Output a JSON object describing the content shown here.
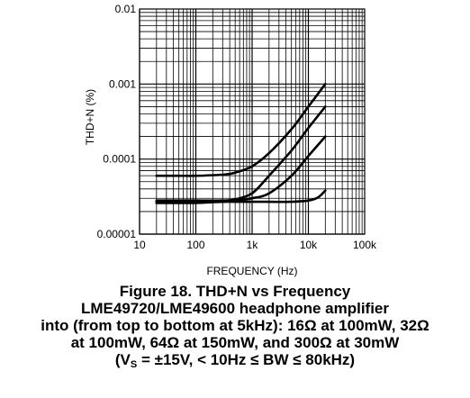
{
  "caption": {
    "line1": "Figure 18. THD+N vs Frequency",
    "line2": "LME49720/LME49600 headphone amplifier",
    "line3": "into (from top to bottom at 5kHz): 16Ω at 100mW, 32Ω",
    "line4": "at 100mW, 64Ω at 150mW, and 300Ω at 30mW",
    "line5_pre": "(V",
    "line5_sub": "S",
    "line5_post": " = ±15V, < 10Hz ≤ BW ≤ 80kHz)"
  },
  "chart_data": {
    "type": "line",
    "title": "",
    "xlabel": "FREQUENCY (Hz)",
    "ylabel": "THD+N (%)",
    "x_scale": "log",
    "y_scale": "log",
    "xlim": [
      10,
      100000
    ],
    "ylim": [
      1e-05,
      0.01
    ],
    "x_ticks": [
      10,
      100,
      1000,
      10000,
      100000
    ],
    "x_tick_labels": [
      "10",
      "100",
      "1k",
      "10k",
      "100k"
    ],
    "y_ticks": [
      1e-05,
      0.0001,
      0.001,
      0.01
    ],
    "y_tick_labels": [
      "0.00001",
      "0.0001",
      "0.001",
      "0.01"
    ],
    "grid": true,
    "series": [
      {
        "label": "16Ω at 100mW",
        "x": [
          20,
          50,
          100,
          300,
          500,
          1000,
          2000,
          5000,
          10000,
          20000
        ],
        "y": [
          6e-05,
          6e-05,
          6e-05,
          6.2e-05,
          6.6e-05,
          8e-05,
          0.00012,
          0.00025,
          0.0005,
          0.001
        ]
      },
      {
        "label": "32Ω at 100mW",
        "x": [
          20,
          50,
          100,
          300,
          500,
          1000,
          2000,
          5000,
          10000,
          20000
        ],
        "y": [
          2.8e-05,
          2.8e-05,
          2.8e-05,
          2.8e-05,
          2.9e-05,
          3.5e-05,
          6e-05,
          0.00013,
          0.00026,
          0.0005
        ]
      },
      {
        "label": "64Ω at 150mW",
        "x": [
          20,
          50,
          100,
          300,
          500,
          1000,
          2000,
          5000,
          10000,
          20000
        ],
        "y": [
          2.7e-05,
          2.7e-05,
          2.7e-05,
          2.7e-05,
          2.8e-05,
          3e-05,
          3.5e-05,
          6e-05,
          0.00011,
          0.0002
        ]
      },
      {
        "label": "300Ω at 30mW",
        "x": [
          20,
          50,
          100,
          300,
          500,
          1000,
          2000,
          5000,
          10000,
          15000,
          20000
        ],
        "y": [
          2.6e-05,
          2.6e-05,
          2.6e-05,
          2.7e-05,
          2.7e-05,
          2.7e-05,
          2.7e-05,
          2.7e-05,
          2.8e-05,
          3.1e-05,
          3.8e-05
        ]
      }
    ]
  }
}
